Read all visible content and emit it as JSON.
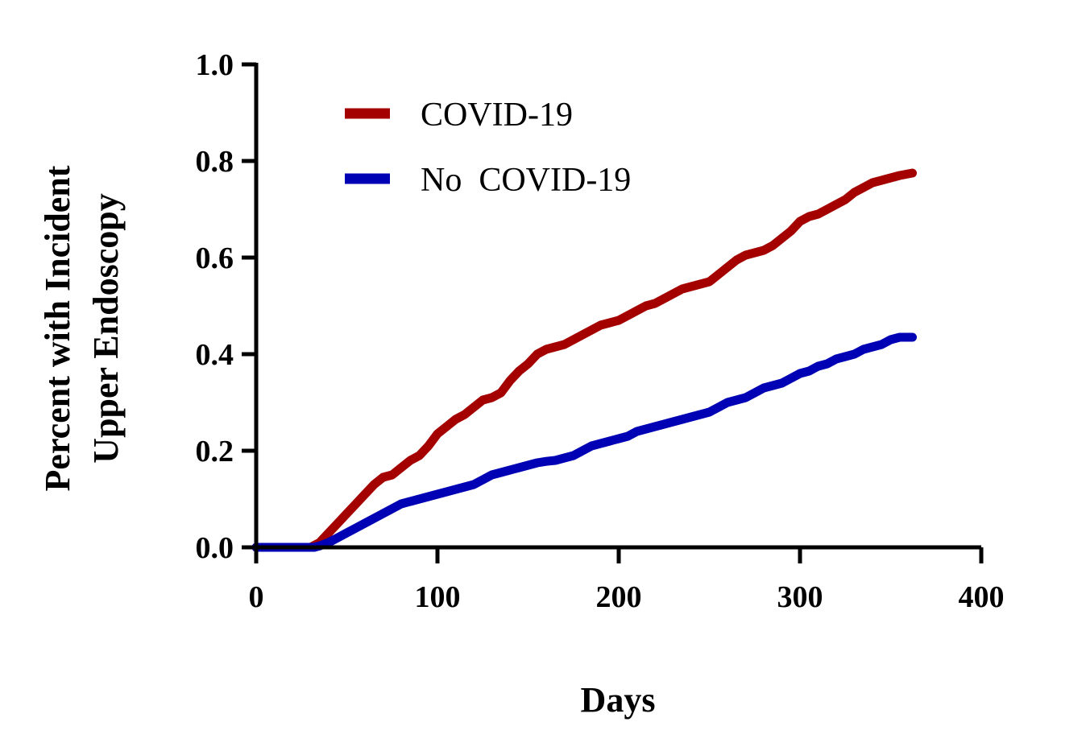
{
  "chart_data": {
    "type": "line",
    "title": "",
    "xlabel": "Days",
    "ylabel_lines": [
      "Percent with Incident",
      "Upper Endoscopy"
    ],
    "xlim": [
      0,
      400
    ],
    "ylim": [
      0,
      1.0
    ],
    "x_ticks": [
      0,
      100,
      200,
      300,
      400
    ],
    "x_tick_labels": [
      "0",
      "100",
      "200",
      "300",
      "400"
    ],
    "y_ticks": [
      0,
      0.2,
      0.4,
      0.6,
      0.8,
      1.0
    ],
    "y_tick_labels": [
      "0.0",
      "0.2",
      "0.4",
      "0.6",
      "0.8",
      "1.0"
    ],
    "grid": false,
    "legend_position": "top-left",
    "series": [
      {
        "name": "COVID-19",
        "color": "#A50000",
        "x": [
          0,
          30,
          35,
          40,
          45,
          50,
          55,
          60,
          65,
          70,
          75,
          80,
          85,
          90,
          95,
          100,
          105,
          110,
          115,
          120,
          125,
          130,
          135,
          140,
          145,
          150,
          155,
          160,
          165,
          170,
          175,
          180,
          185,
          190,
          195,
          200,
          205,
          210,
          215,
          220,
          225,
          230,
          235,
          240,
          245,
          250,
          255,
          260,
          265,
          270,
          275,
          280,
          285,
          290,
          295,
          300,
          305,
          310,
          315,
          320,
          325,
          330,
          335,
          340,
          345,
          350,
          355,
          362
        ],
        "y": [
          0,
          0,
          0.01,
          0.03,
          0.05,
          0.07,
          0.09,
          0.11,
          0.13,
          0.145,
          0.15,
          0.165,
          0.18,
          0.19,
          0.21,
          0.235,
          0.25,
          0.265,
          0.275,
          0.29,
          0.305,
          0.31,
          0.32,
          0.345,
          0.365,
          0.38,
          0.4,
          0.41,
          0.415,
          0.42,
          0.43,
          0.44,
          0.45,
          0.46,
          0.465,
          0.47,
          0.48,
          0.49,
          0.5,
          0.505,
          0.515,
          0.525,
          0.535,
          0.54,
          0.545,
          0.55,
          0.565,
          0.58,
          0.595,
          0.605,
          0.61,
          0.615,
          0.625,
          0.64,
          0.655,
          0.675,
          0.685,
          0.69,
          0.7,
          0.71,
          0.72,
          0.735,
          0.745,
          0.755,
          0.76,
          0.765,
          0.77,
          0.775
        ]
      },
      {
        "name": "No  COVID-19",
        "color": "#0000B4",
        "x": [
          0,
          32,
          35,
          40,
          45,
          50,
          55,
          60,
          65,
          70,
          75,
          80,
          85,
          90,
          95,
          100,
          105,
          110,
          115,
          120,
          125,
          130,
          135,
          140,
          145,
          150,
          155,
          160,
          165,
          170,
          175,
          180,
          185,
          190,
          195,
          200,
          205,
          210,
          215,
          220,
          225,
          230,
          235,
          240,
          245,
          250,
          255,
          260,
          265,
          270,
          275,
          280,
          285,
          290,
          295,
          300,
          305,
          310,
          315,
          320,
          325,
          330,
          335,
          340,
          345,
          350,
          355,
          362
        ],
        "y": [
          0,
          0,
          0.003,
          0.01,
          0.02,
          0.03,
          0.04,
          0.05,
          0.06,
          0.07,
          0.08,
          0.09,
          0.095,
          0.1,
          0.105,
          0.11,
          0.115,
          0.12,
          0.125,
          0.13,
          0.14,
          0.15,
          0.155,
          0.16,
          0.165,
          0.17,
          0.175,
          0.178,
          0.18,
          0.185,
          0.19,
          0.2,
          0.21,
          0.215,
          0.22,
          0.225,
          0.23,
          0.24,
          0.245,
          0.25,
          0.255,
          0.26,
          0.265,
          0.27,
          0.275,
          0.28,
          0.29,
          0.3,
          0.305,
          0.31,
          0.32,
          0.33,
          0.335,
          0.34,
          0.35,
          0.36,
          0.365,
          0.375,
          0.38,
          0.39,
          0.395,
          0.4,
          0.41,
          0.415,
          0.42,
          0.43,
          0.435,
          0.435
        ]
      }
    ]
  }
}
